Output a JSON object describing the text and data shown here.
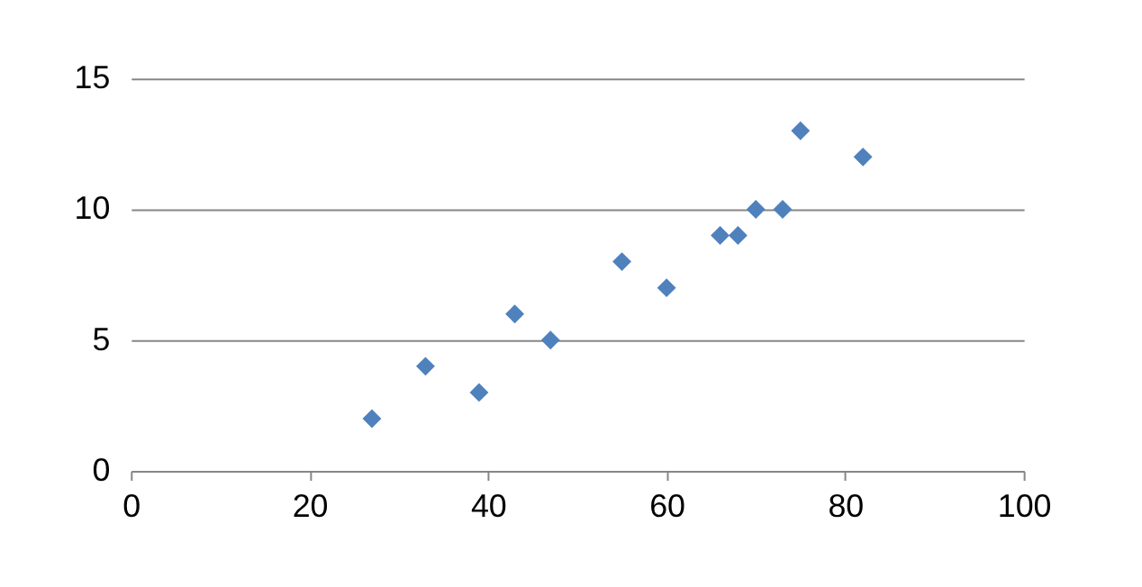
{
  "chart_data": {
    "type": "scatter",
    "x": [
      27,
      33,
      39,
      43,
      47,
      55,
      60,
      66,
      68,
      70,
      73,
      75,
      82
    ],
    "series": [
      {
        "color": "#4f81bd",
        "values": [
          2,
          4,
          3,
          6,
          5,
          8,
          7,
          9,
          9,
          10,
          10,
          13,
          12
        ]
      }
    ],
    "xlim": [
      0,
      100
    ],
    "xticks": [
      0,
      20,
      40,
      60,
      80,
      100
    ],
    "ylim": [
      0,
      15
    ],
    "yticks": [
      0,
      5,
      10,
      15
    ],
    "grid": "y",
    "marker": "diamond"
  }
}
